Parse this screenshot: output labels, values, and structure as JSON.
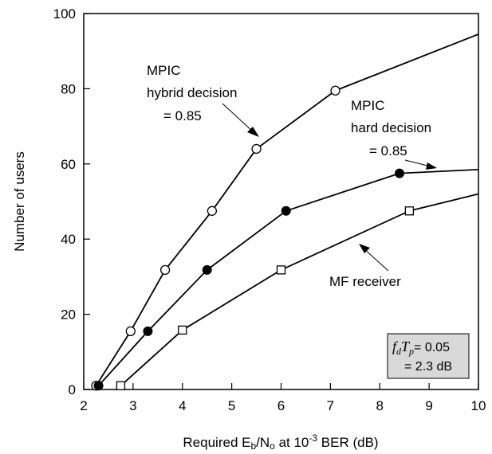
{
  "chart_data": {
    "type": "line",
    "xlabel_parts": {
      "pre": "Required E",
      "sub1": "b",
      "mid": "/N",
      "sub2": "o",
      "post1": " at 10",
      "sup": "-3",
      "post2": " BER (dB)"
    },
    "ylabel": "Number of users",
    "xlim": [
      2,
      10
    ],
    "ylim": [
      0,
      100
    ],
    "x_ticks": [
      "2",
      "3",
      "4",
      "5",
      "6",
      "7",
      "8",
      "9",
      "10"
    ],
    "y_ticks": [
      "0",
      "20",
      "40",
      "60",
      "80",
      "100"
    ],
    "grid": false,
    "series": [
      {
        "name": "MPIC hybrid decision = 0.85",
        "marker": "open-circle",
        "x": [
          2.25,
          2.95,
          3.65,
          4.6,
          5.5,
          7.1,
          10.0
        ],
        "y": [
          1,
          15.5,
          31.8,
          47.5,
          64,
          79.5,
          94.5
        ],
        "marker_count": 6
      },
      {
        "name": "MPIC hard decision = 0.85",
        "marker": "filled-circle",
        "x": [
          2.3,
          3.3,
          4.5,
          6.1,
          8.4,
          10.0
        ],
        "y": [
          1,
          15.5,
          31.8,
          47.5,
          57.5,
          58.5
        ],
        "marker_count": 5
      },
      {
        "name": "MF receiver",
        "marker": "open-square",
        "x": [
          2.75,
          4.0,
          6.0,
          8.6,
          10.0
        ],
        "y": [
          1,
          15.8,
          31.8,
          47.5,
          52
        ],
        "marker_count": 4
      }
    ],
    "annotations": {
      "hybrid": [
        "MPIC",
        "hybrid decision",
        "= 0.85"
      ],
      "hard": [
        "MPIC",
        "hard decision",
        "= 0.85"
      ],
      "mf": "MF receiver"
    },
    "inset": {
      "sym1": "f",
      "sub1": "d",
      "sym2": "T",
      "sub2": "p",
      "line1_value": "= 0.05",
      "line2": "= 2.3 dB",
      "background": "#d9d9d9"
    }
  }
}
